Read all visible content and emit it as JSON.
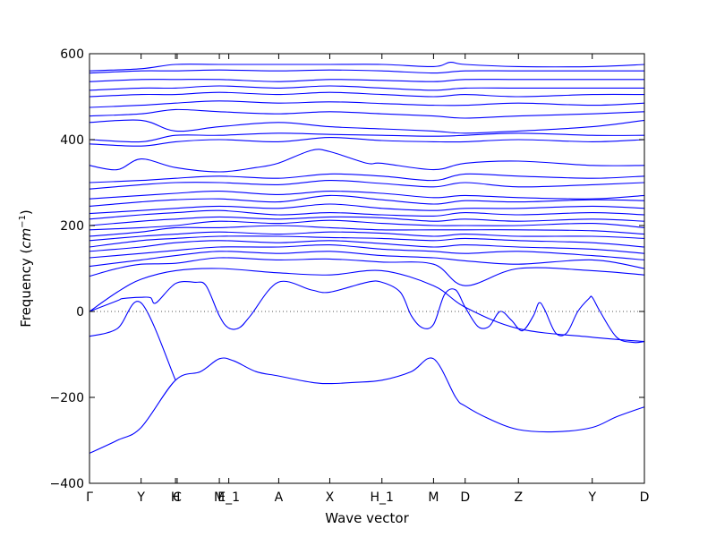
{
  "chart_data": {
    "type": "line",
    "title": "",
    "xlabel": "Wave vector",
    "ylabel_text": "Frequency (",
    "ylabel_unit_base": "cm",
    "ylabel_unit_exp": "−1",
    "ylabel_close": ")",
    "ylim": [
      -400,
      600
    ],
    "y_ticks": [
      {
        "value": 600,
        "label": "600"
      },
      {
        "value": 400,
        "label": "400"
      },
      {
        "value": 200,
        "label": "200"
      },
      {
        "value": 0,
        "label": "0"
      },
      {
        "value": -200,
        "label": "−200"
      },
      {
        "value": -400,
        "label": "−400"
      }
    ],
    "xlim": [
      0,
      1
    ],
    "x_ticks": [
      {
        "pos": 0.0,
        "label": "Γ"
      },
      {
        "pos": 0.093,
        "label": "Y"
      },
      {
        "pos": 0.155,
        "label": "H"
      },
      {
        "pos": 0.158,
        "label": "C"
      },
      {
        "pos": 0.234,
        "label": "M"
      },
      {
        "pos": 0.251,
        "label": "E_1"
      },
      {
        "pos": 0.341,
        "label": "A"
      },
      {
        "pos": 0.433,
        "label": "X"
      },
      {
        "pos": 0.527,
        "label": "H_1"
      },
      {
        "pos": 0.62,
        "label": "M"
      },
      {
        "pos": 0.677,
        "label": "D"
      },
      {
        "pos": 0.773,
        "label": "Z"
      },
      {
        "pos": 0.906,
        "label": "Y"
      },
      {
        "pos": 1.0,
        "label": "D"
      }
    ],
    "zero_line": true,
    "grid": false,
    "legend": "none",
    "series_color": "#0000ff",
    "series": [
      {
        "x": [
          0,
          0.05,
          0.093,
          0.155,
          0.2,
          0.234,
          0.26,
          0.3,
          0.34,
          0.4,
          0.433,
          0.48,
          0.527,
          0.58,
          0.62,
          0.66,
          0.677,
          0.72,
          0.773,
          0.84,
          0.906,
          0.95,
          1.0
        ],
        "y": [
          -330,
          -300,
          -270,
          -160,
          -140,
          -110,
          -115,
          -140,
          -150,
          -165,
          -168,
          -165,
          -160,
          -140,
          -110,
          -200,
          -220,
          -250,
          -275,
          -280,
          -270,
          -245,
          -222
        ]
      },
      {
        "x": [
          0,
          0.05,
          0.093,
          0.155
        ],
        "y": [
          -58,
          -40,
          20,
          -160
        ]
      },
      {
        "x": [
          0,
          0.05,
          0.06,
          0.093,
          0.11,
          0.12,
          0.155,
          0.19,
          0.21,
          0.234,
          0.25,
          0.27,
          0.29,
          0.34,
          0.4,
          0.433,
          0.5,
          0.527,
          0.56,
          0.58,
          0.6,
          0.62,
          0.64,
          0.66,
          0.677,
          0.7,
          0.72,
          0.74,
          0.76,
          0.78,
          0.8,
          0.81,
          0.82,
          0.84,
          0.86,
          0.88,
          0.9,
          0.906,
          0.92,
          0.95,
          0.98,
          1.0
        ],
        "y": [
          0,
          25,
          30,
          33,
          32,
          20,
          65,
          68,
          60,
          -10,
          -38,
          -38,
          -10,
          68,
          50,
          45,
          68,
          68,
          45,
          -10,
          -38,
          -30,
          40,
          50,
          10,
          -35,
          -35,
          0,
          -20,
          -45,
          -10,
          20,
          5,
          -50,
          -50,
          0,
          30,
          33,
          0,
          -60,
          -72,
          -70
        ]
      },
      {
        "x": [
          0,
          0.05,
          0.093,
          0.155,
          0.234,
          0.34,
          0.433,
          0.527,
          0.62,
          0.677,
          0.773,
          0.906,
          1.0
        ],
        "y": [
          0,
          45,
          75,
          95,
          100,
          90,
          85,
          95,
          60,
          10,
          -40,
          -60,
          -70
        ]
      },
      {
        "x": [
          0,
          0.05,
          0.093,
          0.155,
          0.234,
          0.34,
          0.433,
          0.527,
          0.62,
          0.677,
          0.773,
          0.906,
          1.0
        ],
        "y": [
          82,
          100,
          110,
          112,
          125,
          120,
          122,
          115,
          110,
          60,
          100,
          95,
          85
        ]
      },
      {
        "x": [
          0,
          0.093,
          0.155,
          0.234,
          0.34,
          0.433,
          0.527,
          0.62,
          0.677,
          0.773,
          0.906,
          1.0
        ],
        "y": [
          105,
          120,
          130,
          140,
          135,
          140,
          130,
          125,
          118,
          110,
          120,
          100
        ]
      },
      {
        "x": [
          0,
          0.093,
          0.155,
          0.234,
          0.34,
          0.433,
          0.527,
          0.62,
          0.677,
          0.773,
          0.906,
          1.0
        ],
        "y": [
          125,
          135,
          142,
          150,
          150,
          155,
          145,
          140,
          135,
          140,
          130,
          120
        ]
      },
      {
        "x": [
          0,
          0.093,
          0.155,
          0.234,
          0.34,
          0.433,
          0.527,
          0.62,
          0.677,
          0.773,
          0.906,
          1.0
        ],
        "y": [
          140,
          150,
          160,
          165,
          160,
          165,
          158,
          150,
          155,
          150,
          145,
          135
        ]
      },
      {
        "x": [
          0,
          0.093,
          0.155,
          0.234,
          0.34,
          0.433,
          0.527,
          0.62,
          0.677,
          0.773,
          0.906,
          1.0
        ],
        "y": [
          150,
          165,
          170,
          175,
          175,
          172,
          170,
          165,
          170,
          165,
          160,
          150
        ]
      },
      {
        "x": [
          0,
          0.093,
          0.155,
          0.234,
          0.34,
          0.433,
          0.527,
          0.62,
          0.677,
          0.773,
          0.906,
          1.0
        ],
        "y": [
          165,
          175,
          180,
          185,
          180,
          185,
          182,
          175,
          180,
          175,
          175,
          170
        ]
      },
      {
        "x": [
          0,
          0.093,
          0.155,
          0.234,
          0.34,
          0.433,
          0.527,
          0.62,
          0.677,
          0.773,
          0.906,
          1.0
        ],
        "y": [
          175,
          185,
          195,
          195,
          200,
          195,
          190,
          190,
          190,
          190,
          188,
          180
        ]
      },
      {
        "x": [
          0,
          0.093,
          0.155,
          0.234,
          0.34,
          0.433,
          0.527,
          0.62,
          0.677,
          0.773,
          0.906,
          1.0
        ],
        "y": [
          190,
          195,
          200,
          210,
          205,
          212,
          205,
          200,
          200,
          200,
          205,
          195
        ]
      },
      {
        "x": [
          0,
          0.093,
          0.155,
          0.234,
          0.34,
          0.433,
          0.527,
          0.62,
          0.677,
          0.773,
          0.906,
          1.0
        ],
        "y": [
          200,
          210,
          215,
          220,
          215,
          220,
          218,
          210,
          215,
          210,
          215,
          210
        ]
      },
      {
        "x": [
          0,
          0.093,
          0.155,
          0.234,
          0.34,
          0.433,
          0.527,
          0.62,
          0.677,
          0.773,
          0.906,
          1.0
        ],
        "y": [
          215,
          225,
          230,
          235,
          225,
          230,
          225,
          222,
          230,
          225,
          230,
          225
        ]
      },
      {
        "x": [
          0,
          0.093,
          0.155,
          0.234,
          0.34,
          0.433,
          0.527,
          0.62,
          0.677,
          0.773,
          0.906,
          1.0
        ],
        "y": [
          228,
          235,
          240,
          245,
          240,
          250,
          240,
          235,
          240,
          240,
          245,
          240
        ]
      },
      {
        "x": [
          0,
          0.093,
          0.155,
          0.234,
          0.34,
          0.433,
          0.527,
          0.62,
          0.677,
          0.773,
          0.906,
          1.0
        ],
        "y": [
          245,
          255,
          260,
          262,
          255,
          270,
          260,
          250,
          258,
          255,
          260,
          258
        ]
      },
      {
        "x": [
          0,
          0.093,
          0.155,
          0.234,
          0.34,
          0.433,
          0.527,
          0.62,
          0.677,
          0.773,
          0.906,
          1.0
        ],
        "y": [
          262,
          270,
          275,
          280,
          272,
          280,
          275,
          265,
          270,
          265,
          262,
          270
        ]
      },
      {
        "x": [
          0,
          0.093,
          0.155,
          0.234,
          0.34,
          0.433,
          0.527,
          0.62,
          0.677,
          0.773,
          0.906,
          1.0
        ],
        "y": [
          285,
          295,
          300,
          300,
          295,
          305,
          298,
          290,
          300,
          290,
          295,
          300
        ]
      },
      {
        "x": [
          0,
          0.093,
          0.155,
          0.234,
          0.34,
          0.433,
          0.527,
          0.62,
          0.677,
          0.773,
          0.906,
          1.0
        ],
        "y": [
          300,
          305,
          310,
          315,
          310,
          320,
          315,
          305,
          320,
          315,
          310,
          315
        ]
      },
      {
        "x": [
          0,
          0.05,
          0.093,
          0.155,
          0.234,
          0.3,
          0.34,
          0.4,
          0.433,
          0.5,
          0.527,
          0.62,
          0.677,
          0.773,
          0.906,
          1.0
        ],
        "y": [
          340,
          330,
          355,
          335,
          325,
          335,
          345,
          375,
          372,
          345,
          345,
          330,
          345,
          350,
          340,
          340
        ]
      },
      {
        "x": [
          0,
          0.093,
          0.155,
          0.234,
          0.34,
          0.433,
          0.527,
          0.62,
          0.677,
          0.773,
          0.906,
          1.0
        ],
        "y": [
          390,
          385,
          395,
          400,
          395,
          405,
          398,
          395,
          395,
          400,
          395,
          400
        ]
      },
      {
        "x": [
          0,
          0.093,
          0.155,
          0.234,
          0.34,
          0.433,
          0.527,
          0.62,
          0.677,
          0.773,
          0.906,
          1.0
        ],
        "y": [
          400,
          395,
          410,
          410,
          415,
          412,
          410,
          408,
          410,
          415,
          410,
          410
        ]
      },
      {
        "x": [
          0,
          0.093,
          0.155,
          0.234,
          0.34,
          0.433,
          0.527,
          0.62,
          0.677,
          0.773,
          0.906,
          1.0
        ],
        "y": [
          440,
          445,
          420,
          430,
          440,
          430,
          425,
          420,
          415,
          420,
          430,
          445
        ]
      },
      {
        "x": [
          0,
          0.093,
          0.155,
          0.234,
          0.34,
          0.433,
          0.527,
          0.62,
          0.677,
          0.773,
          0.906,
          1.0
        ],
        "y": [
          455,
          460,
          470,
          465,
          460,
          465,
          460,
          455,
          450,
          455,
          460,
          465
        ]
      },
      {
        "x": [
          0,
          0.093,
          0.155,
          0.234,
          0.34,
          0.433,
          0.527,
          0.62,
          0.677,
          0.773,
          0.906,
          1.0
        ],
        "y": [
          475,
          480,
          485,
          490,
          485,
          488,
          484,
          480,
          480,
          485,
          480,
          485
        ]
      },
      {
        "x": [
          0,
          0.093,
          0.155,
          0.234,
          0.34,
          0.433,
          0.527,
          0.62,
          0.677,
          0.773,
          0.906,
          1.0
        ],
        "y": [
          500,
          505,
          505,
          510,
          505,
          510,
          505,
          500,
          505,
          500,
          505,
          505
        ]
      },
      {
        "x": [
          0,
          0.093,
          0.155,
          0.234,
          0.34,
          0.433,
          0.527,
          0.62,
          0.677,
          0.773,
          0.906,
          1.0
        ],
        "y": [
          515,
          520,
          520,
          525,
          520,
          525,
          520,
          515,
          520,
          520,
          520,
          520
        ]
      },
      {
        "x": [
          0,
          0.093,
          0.155,
          0.234,
          0.34,
          0.433,
          0.527,
          0.62,
          0.677,
          0.773,
          0.906,
          1.0
        ],
        "y": [
          535,
          540,
          540,
          540,
          535,
          540,
          538,
          535,
          540,
          540,
          540,
          540
        ]
      },
      {
        "x": [
          0,
          0.093,
          0.155,
          0.234,
          0.34,
          0.433,
          0.527,
          0.62,
          0.677,
          0.773,
          0.906,
          1.0
        ],
        "y": [
          555,
          560,
          560,
          562,
          560,
          562,
          560,
          555,
          560,
          560,
          560,
          560
        ]
      },
      {
        "x": [
          0,
          0.093,
          0.155,
          0.234,
          0.34,
          0.433,
          0.527,
          0.62,
          0.65,
          0.677,
          0.773,
          0.906,
          1.0
        ],
        "y": [
          560,
          565,
          575,
          575,
          575,
          575,
          575,
          570,
          580,
          575,
          570,
          570,
          575
        ]
      }
    ]
  }
}
